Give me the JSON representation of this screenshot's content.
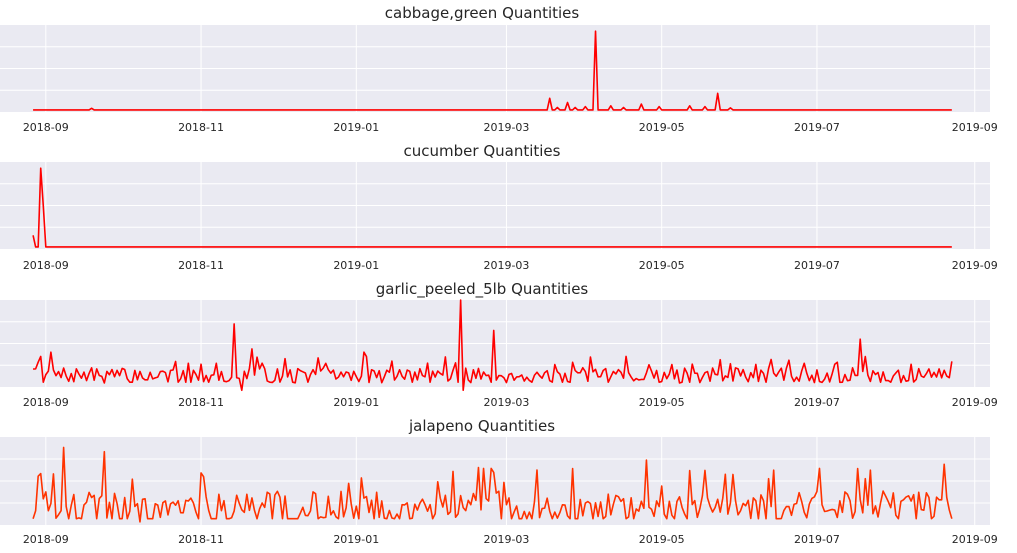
{
  "chart_data": [
    {
      "type": "line",
      "title": "cabbage,green Quantities",
      "x_start": "2018-08-27",
      "x_end": "2019-08-23",
      "x_ticks": [
        "2018-09",
        "2018-11",
        "2019-01",
        "2019-03",
        "2019-05",
        "2019-07",
        "2019-09"
      ],
      "ylim": [
        -5,
        205
      ],
      "grid": true,
      "color": "#ff0000",
      "baseline": 0,
      "spikes": [
        {
          "x": "2018-09-19",
          "y": 4
        },
        {
          "x": "2019-03-18",
          "y": 28
        },
        {
          "x": "2019-03-21",
          "y": 6
        },
        {
          "x": "2019-03-25",
          "y": 18
        },
        {
          "x": "2019-03-28",
          "y": 6
        },
        {
          "x": "2019-04-01",
          "y": 8
        },
        {
          "x": "2019-04-05",
          "y": 190
        },
        {
          "x": "2019-04-11",
          "y": 10
        },
        {
          "x": "2019-04-16",
          "y": 6
        },
        {
          "x": "2019-04-23",
          "y": 14
        },
        {
          "x": "2019-04-30",
          "y": 8
        },
        {
          "x": "2019-05-12",
          "y": 10
        },
        {
          "x": "2019-05-18",
          "y": 8
        },
        {
          "x": "2019-05-23",
          "y": 40
        },
        {
          "x": "2019-05-28",
          "y": 5
        }
      ]
    },
    {
      "type": "line",
      "title": "cucumber Quantities",
      "x_start": "2018-08-27",
      "x_end": "2019-08-23",
      "x_ticks": [
        "2018-09",
        "2018-11",
        "2019-01",
        "2019-03",
        "2019-05",
        "2019-07",
        "2019-09"
      ],
      "ylim": [
        -5,
        205
      ],
      "grid": true,
      "color": "#ff0000",
      "baseline": 0,
      "spikes": [
        {
          "x": "2018-08-27",
          "y": 28
        },
        {
          "x": "2018-08-28",
          "y": 0
        },
        {
          "x": "2018-08-29",
          "y": 0
        },
        {
          "x": "2018-08-30",
          "y": 190
        },
        {
          "x": "2018-08-31",
          "y": 100
        },
        {
          "x": "2018-09-01",
          "y": 0
        }
      ]
    },
    {
      "type": "line",
      "title": "garlic_peeled_5lb Quantities",
      "x_start": "2018-08-27",
      "x_end": "2019-08-23",
      "x_ticks": [
        "2018-09",
        "2018-11",
        "2019-01",
        "2019-03",
        "2019-05",
        "2019-07",
        "2019-09"
      ],
      "ylim": [
        -2,
        78
      ],
      "grid": true,
      "color": "#ff0000",
      "noise": {
        "seed": 7,
        "base": 8,
        "amp": 14
      },
      "spikes": [
        {
          "x": "2018-09-03",
          "y": 30
        },
        {
          "x": "2018-11-14",
          "y": 56
        },
        {
          "x": "2018-11-17",
          "y": -5
        },
        {
          "x": "2018-11-21",
          "y": 33
        },
        {
          "x": "2019-01-04",
          "y": 30
        },
        {
          "x": "2019-02-11",
          "y": 78
        },
        {
          "x": "2019-02-12",
          "y": -5
        },
        {
          "x": "2019-02-24",
          "y": 50
        },
        {
          "x": "2019-07-18",
          "y": 42
        }
      ]
    },
    {
      "type": "line",
      "title": "jalapeno Quantities",
      "x_start": "2018-08-27",
      "x_end": "2019-08-23",
      "x_ticks": [
        "2018-09",
        "2018-11",
        "2019-01",
        "2019-03",
        "2019-05",
        "2019-07",
        "2019-09"
      ],
      "ylim": [
        -6,
        78
      ],
      "grid": true,
      "color": "#ff3300",
      "noise": {
        "seed": 19,
        "base": 10,
        "amp": 30
      },
      "spikes": [
        {
          "x": "2018-09-08",
          "y": 68
        },
        {
          "x": "2018-09-24",
          "y": 64
        },
        {
          "x": "2018-10-08",
          "y": -3
        },
        {
          "x": "2019-02-20",
          "y": 48
        },
        {
          "x": "2019-02-23",
          "y": 48
        },
        {
          "x": "2019-04-25",
          "y": 56
        },
        {
          "x": "2019-07-02",
          "y": 48
        },
        {
          "x": "2019-08-20",
          "y": 52
        }
      ]
    }
  ]
}
